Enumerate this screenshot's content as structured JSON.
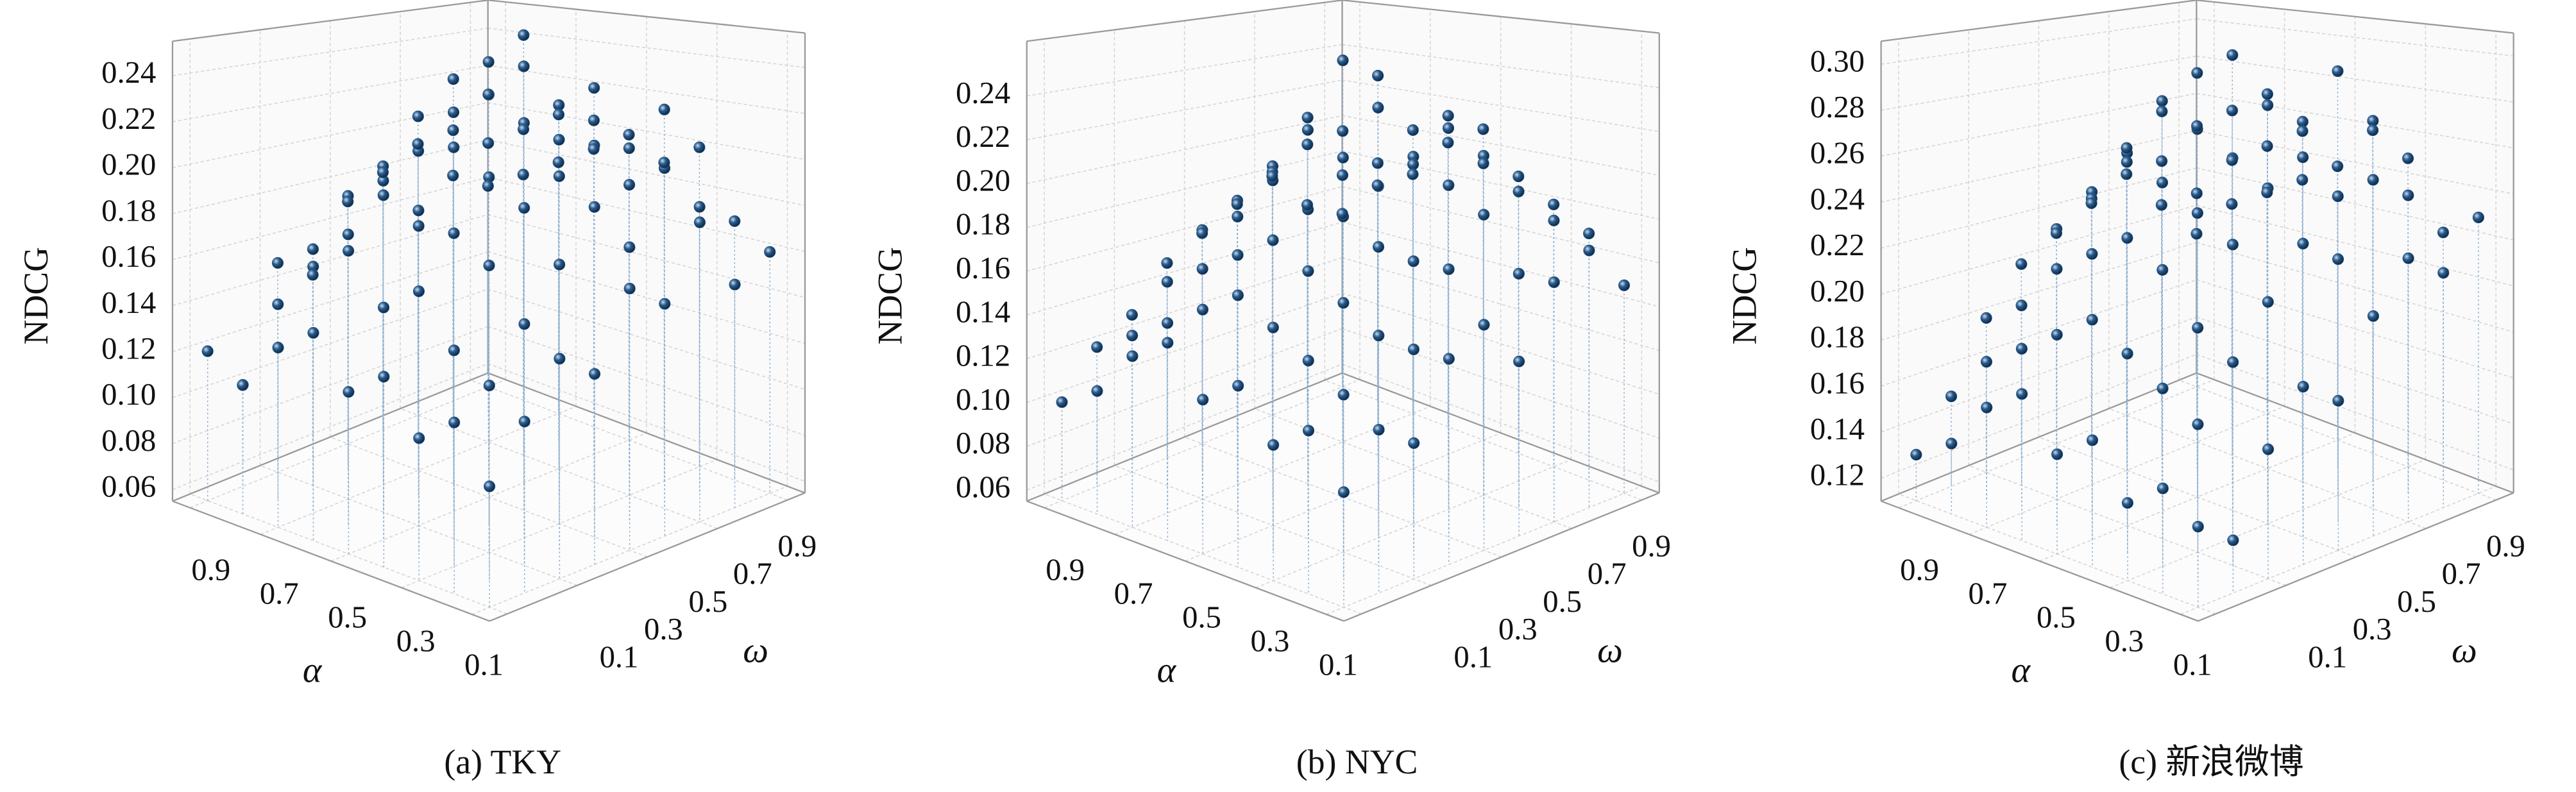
{
  "chart_data": [
    {
      "type": "scatter3d",
      "caption": "(a) TKY",
      "xlabel": "α",
      "ylabel": "ω",
      "zlabel": "NDCG",
      "color": "#2a5b8c",
      "alpha": [
        0.1,
        0.2,
        0.3,
        0.4,
        0.5,
        0.6,
        0.7,
        0.8,
        0.9
      ],
      "omega": [
        0.1,
        0.2,
        0.3,
        0.4,
        0.5,
        0.6,
        0.7,
        0.8,
        0.9
      ],
      "xlim": [
        0.05,
        0.95
      ],
      "ylim": [
        0.05,
        0.95
      ],
      "zlim": [
        0.055,
        0.255
      ],
      "xticks": [
        0.1,
        0.3,
        0.5,
        0.7,
        0.9
      ],
      "yticks": [
        0.1,
        0.3,
        0.5,
        0.7,
        0.9
      ],
      "zticks": [
        0.06,
        0.08,
        {
          "value": 0.1,
          "label": "0.10"
        },
        0.12,
        0.14,
        0.16,
        0.18,
        {
          "value": 0.2,
          "label": "0.20"
        },
        0.22,
        0.24
      ],
      "values": [
        [
          0.1,
          0.12,
          0.14,
          0.13,
          0.16,
          0.15,
          0.18,
          0.15,
          0.16
        ],
        [
          0.12,
          0.13,
          0.15,
          0.17,
          0.19,
          0.17,
          0.2,
          0.18,
          0.17
        ],
        [
          0.11,
          0.14,
          0.17,
          0.19,
          0.2,
          0.21,
          0.19,
          0.22,
          0.2
        ],
        [
          0.13,
          0.16,
          0.18,
          0.2,
          0.22,
          0.21,
          0.23,
          0.2,
          0.19
        ],
        [
          0.12,
          0.15,
          0.18,
          0.21,
          0.23,
          0.24,
          0.22,
          0.21,
          0.2
        ],
        [
          0.14,
          0.17,
          0.19,
          0.18,
          0.22,
          0.24,
          0.25,
          0.21,
          0.19
        ],
        [
          0.13,
          0.16,
          0.17,
          0.19,
          0.2,
          0.23,
          0.22,
          0.2,
          0.18
        ],
        [
          0.11,
          0.14,
          0.16,
          0.18,
          0.19,
          0.21,
          0.2,
          0.19,
          0.17
        ],
        [
          0.12,
          0.1,
          0.15,
          0.14,
          0.17,
          0.18,
          0.19,
          0.17,
          0.16
        ]
      ]
    },
    {
      "type": "scatter3d",
      "caption": "(b) NYC",
      "xlabel": "α",
      "ylabel": "ω",
      "zlabel": "NDCG",
      "color": "#2a5b8c",
      "alpha": [
        0.1,
        0.2,
        0.3,
        0.4,
        0.5,
        0.6,
        0.7,
        0.8,
        0.9
      ],
      "omega": [
        0.1,
        0.2,
        0.3,
        0.4,
        0.5,
        0.6,
        0.7,
        0.8,
        0.9
      ],
      "xlim": [
        0.05,
        0.95
      ],
      "ylim": [
        0.05,
        0.95
      ],
      "zlim": [
        0.055,
        0.265
      ],
      "xticks": [
        0.1,
        0.3,
        0.5,
        0.7,
        0.9
      ],
      "yticks": [
        0.1,
        0.3,
        0.5,
        0.7,
        0.9
      ],
      "zticks": [
        0.06,
        0.08,
        {
          "value": 0.1,
          "label": "0.10"
        },
        0.12,
        0.14,
        0.16,
        0.18,
        {
          "value": 0.2,
          "label": "0.20"
        },
        0.22,
        0.24
      ],
      "values": [
        [
          0.1,
          0.12,
          0.11,
          0.14,
          0.15,
          0.13,
          0.16,
          0.17,
          0.15
        ],
        [
          0.12,
          0.13,
          0.15,
          0.14,
          0.17,
          0.19,
          0.16,
          0.18,
          0.17
        ],
        [
          0.11,
          0.14,
          0.16,
          0.18,
          0.17,
          0.2,
          0.21,
          0.19,
          0.18
        ],
        [
          0.13,
          0.15,
          0.17,
          0.19,
          0.2,
          0.21,
          0.22,
          0.2,
          0.19
        ],
        [
          0.12,
          0.16,
          0.18,
          0.19,
          0.21,
          0.23,
          0.2,
          0.22,
          0.21
        ],
        [
          0.14,
          0.15,
          0.17,
          0.2,
          0.22,
          0.25,
          0.24,
          0.21,
          0.2
        ],
        [
          0.13,
          0.14,
          0.16,
          0.18,
          0.2,
          0.22,
          0.21,
          0.19,
          0.18
        ],
        [
          0.11,
          0.13,
          0.15,
          0.17,
          0.18,
          0.19,
          0.2,
          0.18,
          0.17
        ],
        [
          0.1,
          0.12,
          0.13,
          0.15,
          0.16,
          0.17,
          0.18,
          0.16,
          0.15
        ]
      ]
    },
    {
      "type": "scatter3d",
      "caption": "(c) 新浪微博",
      "xlabel": "α",
      "ylabel": "ω",
      "zlabel": "NDCG",
      "color": "#2a5b8c",
      "alpha": [
        0.1,
        0.2,
        0.3,
        0.4,
        0.5,
        0.6,
        0.7,
        0.8,
        0.9
      ],
      "omega": [
        0.1,
        0.2,
        0.3,
        0.4,
        0.5,
        0.6,
        0.7,
        0.8,
        0.9
      ],
      "xlim": [
        0.05,
        0.95
      ],
      "ylim": [
        0.05,
        0.95
      ],
      "zlim": [
        0.11,
        0.31
      ],
      "xticks": [
        0.1,
        0.3,
        0.5,
        0.7,
        0.9
      ],
      "yticks": [
        0.1,
        0.3,
        0.5,
        0.7,
        0.9
      ],
      "zticks": [
        0.12,
        0.14,
        0.16,
        0.18,
        {
          "value": 0.2,
          "label": "0.20"
        },
        0.22,
        0.24,
        0.26,
        0.28,
        {
          "value": 0.3,
          "label": "0.30"
        }
      ],
      "values": [
        [
          0.14,
          0.13,
          0.16,
          0.18,
          0.17,
          0.2,
          0.22,
          0.21,
          0.23
        ],
        [
          0.15,
          0.17,
          0.19,
          0.21,
          0.23,
          0.22,
          0.25,
          0.24,
          0.22
        ],
        [
          0.14,
          0.18,
          0.2,
          0.23,
          0.25,
          0.26,
          0.24,
          0.27,
          0.25
        ],
        [
          0.16,
          0.19,
          0.22,
          0.24,
          0.26,
          0.28,
          0.27,
          0.29,
          0.26
        ],
        [
          0.15,
          0.2,
          0.23,
          0.25,
          0.27,
          0.3,
          0.28,
          0.26,
          0.24
        ],
        [
          0.17,
          0.19,
          0.22,
          0.26,
          0.28,
          0.29,
          0.27,
          0.25,
          0.23
        ],
        [
          0.16,
          0.18,
          0.21,
          0.24,
          0.25,
          0.27,
          0.26,
          0.24,
          0.22
        ],
        [
          0.14,
          0.17,
          0.19,
          0.22,
          0.23,
          0.25,
          0.24,
          0.22,
          0.21
        ],
        [
          0.13,
          0.15,
          0.18,
          0.2,
          0.21,
          0.22,
          0.23,
          0.21,
          0.19
        ]
      ]
    }
  ]
}
